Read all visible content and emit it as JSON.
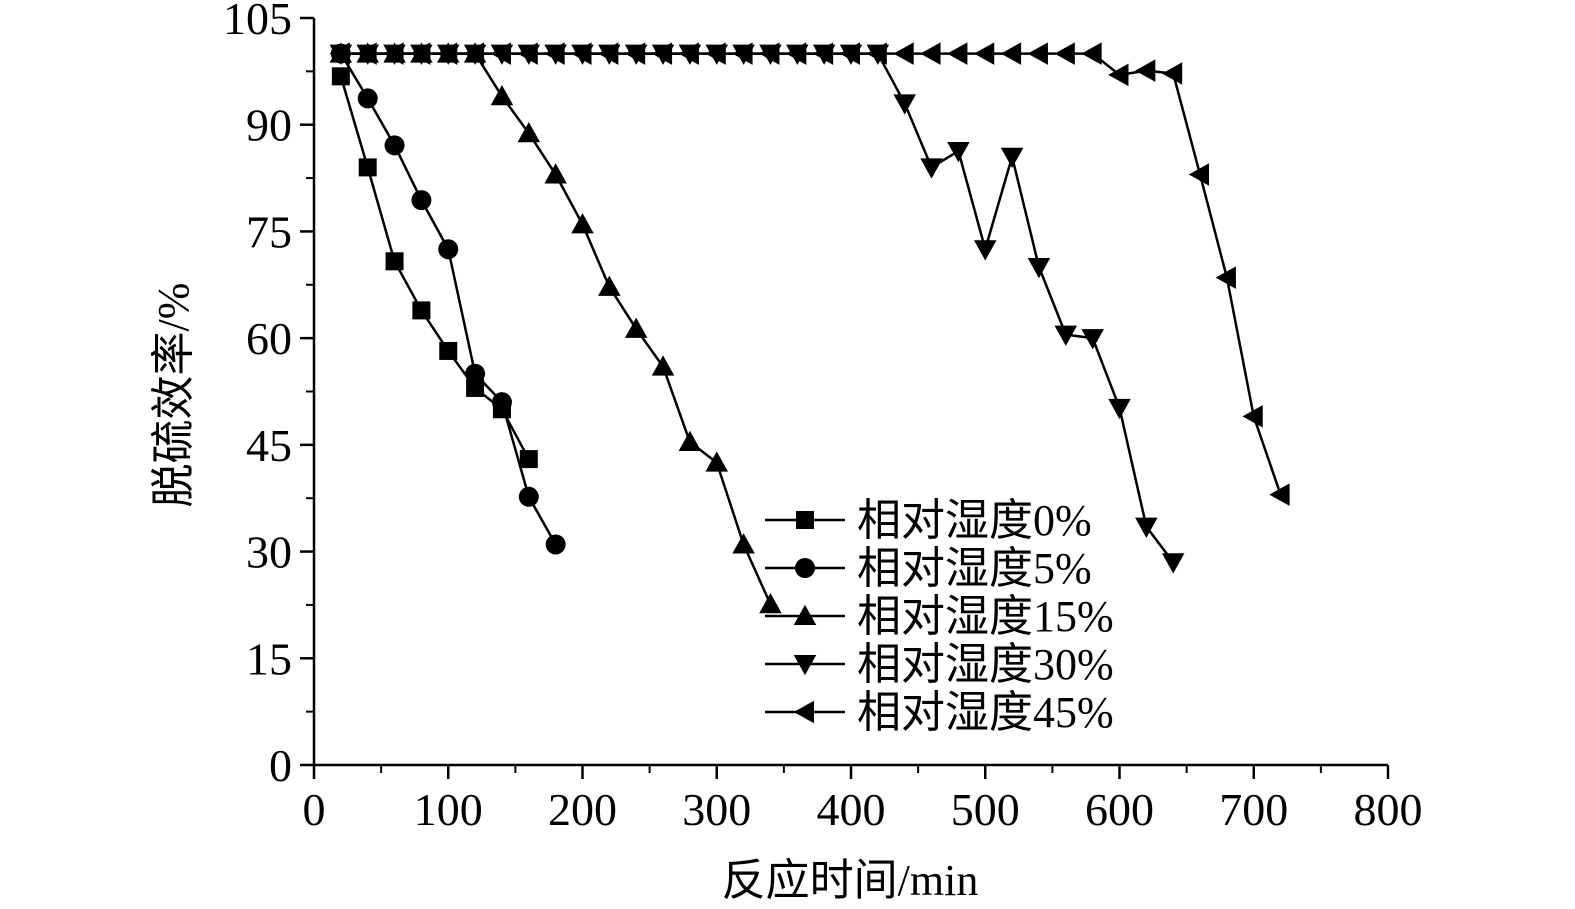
{
  "chart_data": {
    "type": "line",
    "title": "",
    "xlabel": "反应时间/min",
    "ylabel": "脱硫效率/%",
    "xlim": [
      0,
      800
    ],
    "ylim": [
      0,
      105
    ],
    "xticks": [
      "0",
      "100",
      "200",
      "300",
      "400",
      "500",
      "600",
      "700",
      "800"
    ],
    "yticks": [
      "0",
      "15",
      "30",
      "45",
      "60",
      "75",
      "90",
      "105"
    ],
    "grid": false,
    "legend_position": "bottom-right",
    "series": [
      {
        "name": "相对湿度0%",
        "marker": "square",
        "x": [
          20,
          40,
          60,
          80,
          100,
          120,
          140,
          160
        ],
        "y": [
          96.8,
          84.0,
          70.8,
          63.9,
          58.2,
          53.0,
          50.0,
          43.0
        ]
      },
      {
        "name": "相对湿度5%",
        "marker": "circle",
        "x": [
          20,
          40,
          60,
          80,
          100,
          120,
          140,
          160,
          180
        ],
        "y": [
          100,
          93.7,
          87.1,
          79.4,
          72.5,
          55.0,
          51.0,
          37.7,
          31.0
        ]
      },
      {
        "name": "相对湿度15%",
        "marker": "triangle-up",
        "x": [
          20,
          40,
          60,
          80,
          100,
          120,
          140,
          160,
          180,
          200,
          220,
          240,
          260,
          280,
          300,
          320,
          340
        ],
        "y": [
          100,
          100,
          100,
          100,
          100,
          100,
          94.0,
          88.8,
          83.0,
          76.0,
          67.2,
          61.3,
          56.0,
          45.4,
          42.5,
          31.0,
          22.6
        ]
      },
      {
        "name": "相对湿度30%",
        "marker": "triangle-down",
        "x": [
          20,
          40,
          60,
          80,
          100,
          120,
          140,
          160,
          180,
          200,
          220,
          240,
          260,
          280,
          300,
          320,
          340,
          360,
          380,
          400,
          420,
          440,
          460,
          480,
          500,
          520,
          540,
          560,
          580,
          600,
          620,
          640
        ],
        "y": [
          100,
          100,
          100,
          100,
          100,
          100,
          100,
          100,
          100,
          100,
          100,
          100,
          100,
          100,
          100,
          100,
          100,
          100,
          100,
          100,
          100,
          93.0,
          84.0,
          86.3,
          72.5,
          85.5,
          70.0,
          60.5,
          60.0,
          50.2,
          33.5,
          28.5
        ]
      },
      {
        "name": "相对湿度45%",
        "marker": "triangle-left",
        "x": [
          20,
          40,
          60,
          80,
          100,
          120,
          140,
          160,
          180,
          200,
          220,
          240,
          260,
          280,
          300,
          320,
          340,
          360,
          380,
          400,
          420,
          440,
          460,
          480,
          500,
          520,
          540,
          560,
          580,
          600,
          620,
          640,
          660,
          680,
          700,
          720
        ],
        "y": [
          100,
          100,
          100,
          100,
          100,
          100,
          100,
          100,
          100,
          100,
          100,
          100,
          100,
          100,
          100,
          100,
          100,
          100,
          100,
          100,
          100,
          100,
          100,
          100,
          100,
          100,
          100,
          100,
          100,
          97.0,
          97.6,
          97.2,
          83.0,
          68.5,
          49.0,
          38.0
        ]
      }
    ]
  }
}
